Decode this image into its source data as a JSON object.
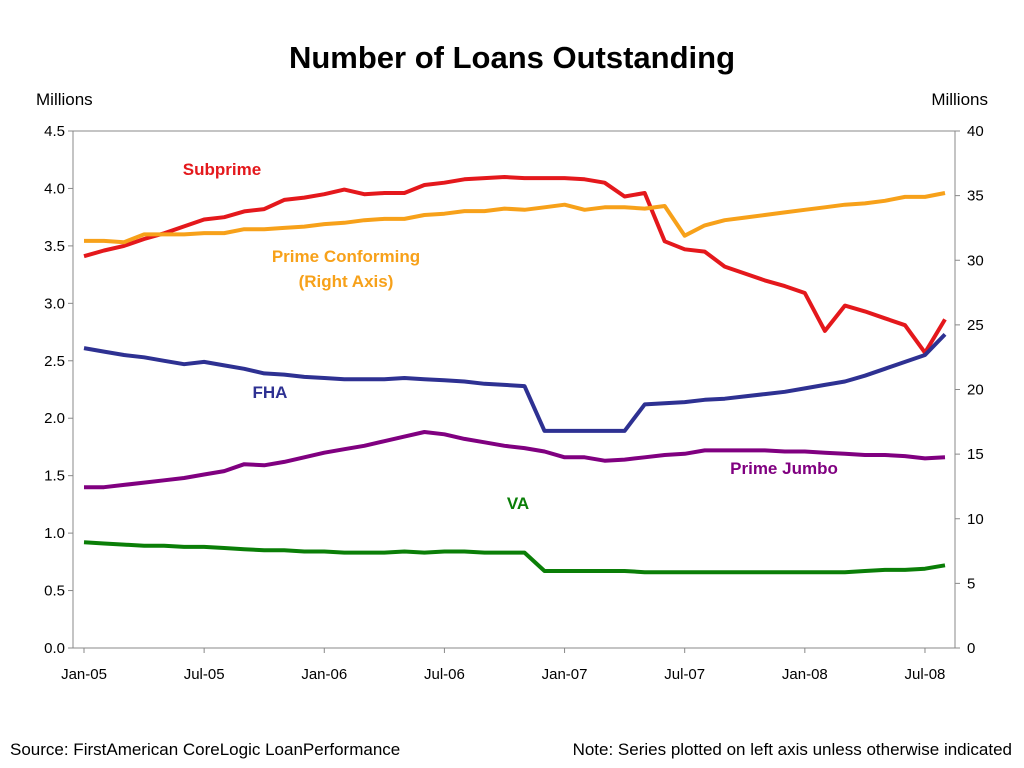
{
  "page": {
    "title": "Number of Loans Outstanding",
    "left_unit": "Millions",
    "right_unit": "Millions",
    "source": "Source: FirstAmerican CoreLogic LoanPerformance",
    "note": "Note: Series plotted on left axis unless otherwise indicated"
  },
  "chart_data": {
    "type": "line",
    "title": "Number of Loans Outstanding",
    "x_tick_labels": [
      "Jan-05",
      "Jul-05",
      "Jan-06",
      "Jul-06",
      "Jan-07",
      "Jul-07",
      "Jan-08",
      "Jul-08"
    ],
    "x_start": "2005-01",
    "x_end": "2008-08",
    "left_axis": {
      "label": "Millions",
      "ylim": [
        0,
        4.5
      ],
      "ticks": [
        "0.0",
        "0.5",
        "1.0",
        "1.5",
        "2.0",
        "2.5",
        "3.0",
        "3.5",
        "4.0",
        "4.5"
      ]
    },
    "right_axis": {
      "label": "Millions",
      "ylim": [
        0,
        40
      ],
      "ticks": [
        "0",
        "5",
        "10",
        "15",
        "20",
        "25",
        "30",
        "35",
        "40"
      ]
    },
    "grid": false,
    "series": [
      {
        "name": "Subprime",
        "label": "Subprime",
        "axis": "left",
        "color": "#e4181c",
        "x": [
          "2005-01",
          "2005-02",
          "2005-03",
          "2005-04",
          "2005-05",
          "2005-06",
          "2005-07",
          "2005-08",
          "2005-09",
          "2005-10",
          "2005-11",
          "2005-12",
          "2006-01",
          "2006-02",
          "2006-03",
          "2006-04",
          "2006-05",
          "2006-06",
          "2006-07",
          "2006-08",
          "2006-09",
          "2006-10",
          "2006-11",
          "2006-12",
          "2007-01",
          "2007-02",
          "2007-03",
          "2007-04",
          "2007-05",
          "2007-06",
          "2007-07",
          "2007-08",
          "2007-09",
          "2007-10",
          "2007-11",
          "2007-12",
          "2008-01",
          "2008-02",
          "2008-03",
          "2008-04",
          "2008-05",
          "2008-06",
          "2008-07",
          "2008-08"
        ],
        "values": [
          3.41,
          3.46,
          3.5,
          3.56,
          3.61,
          3.67,
          3.73,
          3.75,
          3.8,
          3.82,
          3.9,
          3.92,
          3.95,
          3.99,
          3.95,
          3.96,
          3.96,
          4.03,
          4.05,
          4.08,
          4.09,
          4.1,
          4.09,
          4.09,
          4.09,
          4.08,
          4.05,
          3.93,
          3.96,
          3.54,
          3.47,
          3.45,
          3.32,
          3.26,
          3.2,
          3.15,
          3.09,
          2.76,
          2.98,
          2.93,
          2.87,
          2.81,
          2.57,
          2.86
        ]
      },
      {
        "name": "Prime Conforming",
        "label": "Prime Conforming (Right Axis)",
        "axis": "right",
        "color": "#f7a11a",
        "x": [
          "2005-01",
          "2005-02",
          "2005-03",
          "2005-04",
          "2005-05",
          "2005-06",
          "2005-07",
          "2005-08",
          "2005-09",
          "2005-10",
          "2005-11",
          "2005-12",
          "2006-01",
          "2006-02",
          "2006-03",
          "2006-04",
          "2006-05",
          "2006-06",
          "2006-07",
          "2006-08",
          "2006-09",
          "2006-10",
          "2006-11",
          "2006-12",
          "2007-01",
          "2007-02",
          "2007-03",
          "2007-04",
          "2007-05",
          "2007-06",
          "2007-07",
          "2007-08",
          "2007-09",
          "2007-10",
          "2007-11",
          "2007-12",
          "2008-01",
          "2008-02",
          "2008-03",
          "2008-04",
          "2008-05",
          "2008-06",
          "2008-07",
          "2008-08"
        ],
        "values": [
          31.5,
          31.5,
          31.4,
          32.0,
          32.0,
          32.0,
          32.1,
          32.1,
          32.4,
          32.4,
          32.5,
          32.6,
          32.8,
          32.9,
          33.1,
          33.2,
          33.2,
          33.5,
          33.6,
          33.8,
          33.8,
          34.0,
          33.9,
          34.1,
          34.3,
          33.9,
          34.1,
          34.1,
          34.0,
          34.2,
          31.9,
          32.7,
          33.1,
          33.3,
          33.5,
          33.7,
          33.9,
          34.1,
          34.3,
          34.4,
          34.6,
          34.9,
          34.9,
          35.2
        ]
      },
      {
        "name": "FHA",
        "label": "FHA",
        "axis": "left",
        "color": "#2e3192",
        "x": [
          "2005-01",
          "2005-02",
          "2005-03",
          "2005-04",
          "2005-05",
          "2005-06",
          "2005-07",
          "2005-08",
          "2005-09",
          "2005-10",
          "2005-11",
          "2005-12",
          "2006-01",
          "2006-02",
          "2006-03",
          "2006-04",
          "2006-05",
          "2006-06",
          "2006-07",
          "2006-08",
          "2006-09",
          "2006-10",
          "2006-11",
          "2006-12",
          "2007-01",
          "2007-02",
          "2007-03",
          "2007-04",
          "2007-05",
          "2007-06",
          "2007-07",
          "2007-08",
          "2007-09",
          "2007-10",
          "2007-11",
          "2007-12",
          "2008-01",
          "2008-02",
          "2008-03",
          "2008-04",
          "2008-05",
          "2008-06",
          "2008-07",
          "2008-08"
        ],
        "values": [
          2.61,
          2.58,
          2.55,
          2.53,
          2.5,
          2.47,
          2.49,
          2.46,
          2.43,
          2.39,
          2.38,
          2.36,
          2.35,
          2.34,
          2.34,
          2.34,
          2.35,
          2.34,
          2.33,
          2.32,
          2.3,
          2.29,
          2.28,
          1.89,
          1.89,
          1.89,
          1.89,
          1.89,
          2.12,
          2.13,
          2.14,
          2.16,
          2.17,
          2.19,
          2.21,
          2.23,
          2.26,
          2.29,
          2.32,
          2.37,
          2.43,
          2.49,
          2.55,
          2.73
        ]
      },
      {
        "name": "Prime Jumbo",
        "label": "Prime Jumbo",
        "axis": "left",
        "color": "#800080",
        "x": [
          "2005-01",
          "2005-02",
          "2005-03",
          "2005-04",
          "2005-05",
          "2005-06",
          "2005-07",
          "2005-08",
          "2005-09",
          "2005-10",
          "2005-11",
          "2005-12",
          "2006-01",
          "2006-02",
          "2006-03",
          "2006-04",
          "2006-05",
          "2006-06",
          "2006-07",
          "2006-08",
          "2006-09",
          "2006-10",
          "2006-11",
          "2006-12",
          "2007-01",
          "2007-02",
          "2007-03",
          "2007-04",
          "2007-05",
          "2007-06",
          "2007-07",
          "2007-08",
          "2007-09",
          "2007-10",
          "2007-11",
          "2007-12",
          "2008-01",
          "2008-02",
          "2008-03",
          "2008-04",
          "2008-05",
          "2008-06",
          "2008-07",
          "2008-08"
        ],
        "values": [
          1.4,
          1.4,
          1.42,
          1.44,
          1.46,
          1.48,
          1.51,
          1.54,
          1.6,
          1.59,
          1.62,
          1.66,
          1.7,
          1.73,
          1.76,
          1.8,
          1.84,
          1.88,
          1.86,
          1.82,
          1.79,
          1.76,
          1.74,
          1.71,
          1.66,
          1.66,
          1.63,
          1.64,
          1.66,
          1.68,
          1.69,
          1.72,
          1.72,
          1.72,
          1.72,
          1.71,
          1.71,
          1.7,
          1.69,
          1.68,
          1.68,
          1.67,
          1.65,
          1.66
        ]
      },
      {
        "name": "VA",
        "label": "VA",
        "axis": "left",
        "color": "#0a7e07",
        "x": [
          "2005-01",
          "2005-02",
          "2005-03",
          "2005-04",
          "2005-05",
          "2005-06",
          "2005-07",
          "2005-08",
          "2005-09",
          "2005-10",
          "2005-11",
          "2005-12",
          "2006-01",
          "2006-02",
          "2006-03",
          "2006-04",
          "2006-05",
          "2006-06",
          "2006-07",
          "2006-08",
          "2006-09",
          "2006-10",
          "2006-11",
          "2006-12",
          "2007-01",
          "2007-02",
          "2007-03",
          "2007-04",
          "2007-05",
          "2007-06",
          "2007-07",
          "2007-08",
          "2007-09",
          "2007-10",
          "2007-11",
          "2007-12",
          "2008-01",
          "2008-02",
          "2008-03",
          "2008-04",
          "2008-05",
          "2008-06",
          "2008-07",
          "2008-08"
        ],
        "values": [
          0.92,
          0.91,
          0.9,
          0.89,
          0.89,
          0.88,
          0.88,
          0.87,
          0.86,
          0.85,
          0.85,
          0.84,
          0.84,
          0.83,
          0.83,
          0.83,
          0.84,
          0.83,
          0.84,
          0.84,
          0.83,
          0.83,
          0.83,
          0.67,
          0.67,
          0.67,
          0.67,
          0.67,
          0.66,
          0.66,
          0.66,
          0.66,
          0.66,
          0.66,
          0.66,
          0.66,
          0.66,
          0.66,
          0.66,
          0.67,
          0.68,
          0.68,
          0.69,
          0.72
        ]
      }
    ]
  }
}
